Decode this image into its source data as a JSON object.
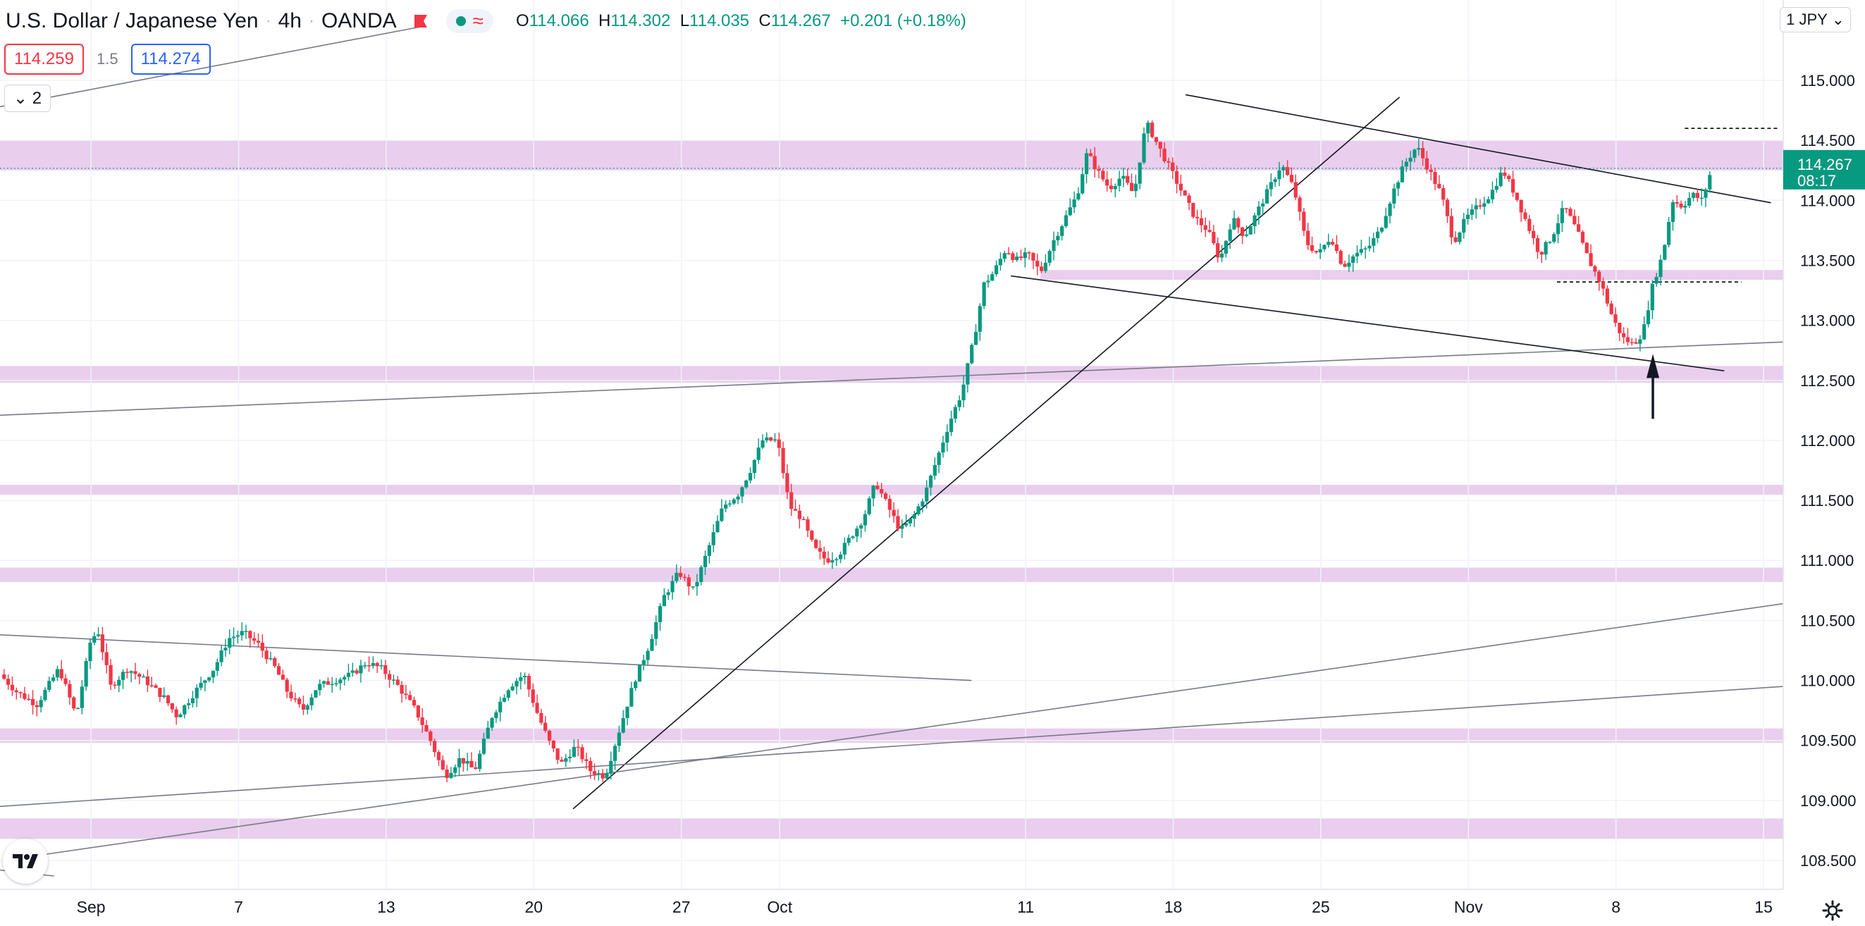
{
  "header": {
    "symbol": "U.S. Dollar / Japanese Yen",
    "interval": "4h",
    "exchange": "OANDA",
    "open_label": "O",
    "open": "114.066",
    "high_label": "H",
    "high": "114.302",
    "low_label": "L",
    "low": "114.035",
    "close_label": "C",
    "close": "114.267",
    "change": "+0.201 (+0.18%)"
  },
  "trade": {
    "sell": "114.259",
    "spread": "1.5",
    "buy": "114.274"
  },
  "indicators_toggle": {
    "count": "2"
  },
  "currency_selector": "1 JPY",
  "icons": [
    "flag-icon",
    "green-dot-icon",
    "wave-icon",
    "chevron-down-icon",
    "tradingview-logo-icon",
    "gear-icon"
  ],
  "colors": {
    "up": "#089981",
    "down": "#f23645",
    "zone": "#e1bee7",
    "price_tag": "#089981"
  },
  "chart_data": {
    "type": "candlestick",
    "title": "U.S. Dollar / Japanese Yen",
    "ylim": [
      108.25,
      115.35
    ],
    "y_ticks": [
      "115.000",
      "114.500",
      "114.000",
      "113.500",
      "113.000",
      "112.500",
      "112.000",
      "111.500",
      "111.000",
      "110.500",
      "110.000",
      "109.500",
      "109.000",
      "108.500"
    ],
    "x_ticks": [
      {
        "label": "Sep",
        "day": 0
      },
      {
        "label": "7",
        "day": 6
      },
      {
        "label": "13",
        "day": 12
      },
      {
        "label": "20",
        "day": 18
      },
      {
        "label": "27",
        "day": 24
      },
      {
        "label": "Oct",
        "day": 28
      },
      {
        "label": "11",
        "day": 38
      },
      {
        "label": "18",
        "day": 44
      },
      {
        "label": "25",
        "day": 50
      },
      {
        "label": "Nov",
        "day": 56
      },
      {
        "label": "8",
        "day": 62
      },
      {
        "label": "15",
        "day": 68
      }
    ],
    "x_range_days": [
      -3.7,
      68.8
    ],
    "last_price": "114.267",
    "countdown": "08:17",
    "price_path": [
      [
        -3.7,
        110.05
      ],
      [
        -3,
        109.9
      ],
      [
        -2.2,
        109.8
      ],
      [
        -1.3,
        110.1
      ],
      [
        -0.6,
        109.7
      ],
      [
        0,
        110.35
      ],
      [
        0.3,
        110.4
      ],
      [
        0.8,
        109.95
      ],
      [
        1.5,
        110.1
      ],
      [
        2.2,
        110.0
      ],
      [
        3.0,
        109.85
      ],
      [
        3.5,
        109.7
      ],
      [
        4.2,
        109.9
      ],
      [
        5.0,
        110.1
      ],
      [
        5.6,
        110.35
      ],
      [
        6.2,
        110.4
      ],
      [
        6.8,
        110.3
      ],
      [
        7.5,
        110.1
      ],
      [
        8.0,
        109.9
      ],
      [
        8.6,
        109.75
      ],
      [
        9.2,
        109.95
      ],
      [
        9.9,
        110.0
      ],
      [
        10.6,
        110.05
      ],
      [
        11.2,
        110.15
      ],
      [
        11.8,
        110.1
      ],
      [
        12.5,
        109.95
      ],
      [
        13.2,
        109.75
      ],
      [
        13.8,
        109.5
      ],
      [
        14.4,
        109.2
      ],
      [
        15.0,
        109.35
      ],
      [
        15.6,
        109.25
      ],
      [
        16.3,
        109.7
      ],
      [
        17.0,
        109.95
      ],
      [
        17.6,
        110.05
      ],
      [
        18.1,
        109.75
      ],
      [
        18.6,
        109.5
      ],
      [
        19.1,
        109.3
      ],
      [
        19.7,
        109.45
      ],
      [
        20.3,
        109.25
      ],
      [
        20.9,
        109.2
      ],
      [
        21.5,
        109.6
      ],
      [
        22.1,
        110.0
      ],
      [
        22.7,
        110.3
      ],
      [
        23.3,
        110.7
      ],
      [
        23.9,
        110.9
      ],
      [
        24.5,
        110.75
      ],
      [
        25.1,
        111.1
      ],
      [
        25.7,
        111.45
      ],
      [
        26.3,
        111.55
      ],
      [
        26.8,
        111.75
      ],
      [
        27.3,
        112.0
      ],
      [
        27.9,
        112.0
      ],
      [
        28.4,
        111.45
      ],
      [
        28.9,
        111.35
      ],
      [
        29.4,
        111.1
      ],
      [
        29.9,
        111.0
      ],
      [
        30.4,
        111.05
      ],
      [
        30.9,
        111.2
      ],
      [
        31.4,
        111.35
      ],
      [
        31.9,
        111.65
      ],
      [
        32.4,
        111.45
      ],
      [
        32.9,
        111.25
      ],
      [
        33.4,
        111.35
      ],
      [
        33.9,
        111.55
      ],
      [
        34.4,
        111.85
      ],
      [
        34.9,
        112.15
      ],
      [
        35.4,
        112.4
      ],
      [
        35.9,
        112.85
      ],
      [
        36.3,
        113.3
      ],
      [
        36.7,
        113.4
      ],
      [
        37.2,
        113.6
      ],
      [
        37.6,
        113.5
      ],
      [
        38.1,
        113.55
      ],
      [
        38.6,
        113.4
      ],
      [
        39.1,
        113.65
      ],
      [
        39.6,
        113.85
      ],
      [
        40.1,
        114.05
      ],
      [
        40.5,
        114.4
      ],
      [
        40.9,
        114.25
      ],
      [
        41.4,
        114.1
      ],
      [
        41.9,
        114.2
      ],
      [
        42.4,
        114.05
      ],
      [
        42.9,
        114.65
      ],
      [
        43.4,
        114.45
      ],
      [
        43.9,
        114.25
      ],
      [
        44.4,
        114.05
      ],
      [
        44.9,
        113.85
      ],
      [
        45.4,
        113.75
      ],
      [
        45.9,
        113.5
      ],
      [
        46.4,
        113.85
      ],
      [
        46.9,
        113.7
      ],
      [
        47.4,
        113.9
      ],
      [
        47.9,
        114.1
      ],
      [
        48.4,
        114.3
      ],
      [
        48.9,
        114.1
      ],
      [
        49.4,
        113.65
      ],
      [
        49.9,
        113.55
      ],
      [
        50.4,
        113.7
      ],
      [
        50.9,
        113.45
      ],
      [
        51.4,
        113.55
      ],
      [
        51.9,
        113.6
      ],
      [
        52.4,
        113.75
      ],
      [
        52.9,
        114.05
      ],
      [
        53.4,
        114.3
      ],
      [
        53.9,
        114.45
      ],
      [
        54.4,
        114.25
      ],
      [
        54.9,
        114.05
      ],
      [
        55.4,
        113.65
      ],
      [
        55.9,
        113.85
      ],
      [
        56.4,
        113.95
      ],
      [
        56.9,
        114.05
      ],
      [
        57.4,
        114.25
      ],
      [
        57.9,
        114.05
      ],
      [
        58.4,
        113.8
      ],
      [
        58.9,
        113.55
      ],
      [
        59.4,
        113.7
      ],
      [
        59.9,
        113.95
      ],
      [
        60.4,
        113.75
      ],
      [
        60.9,
        113.5
      ],
      [
        61.4,
        113.3
      ],
      [
        61.9,
        113.0
      ],
      [
        62.3,
        112.85
      ],
      [
        62.7,
        112.8
      ],
      [
        63.1,
        112.9
      ],
      [
        63.5,
        113.3
      ],
      [
        63.9,
        113.55
      ],
      [
        64.3,
        114.0
      ],
      [
        64.7,
        113.95
      ],
      [
        65.1,
        114.05
      ],
      [
        65.5,
        114.0
      ],
      [
        65.9,
        114.27
      ]
    ]
  }
}
